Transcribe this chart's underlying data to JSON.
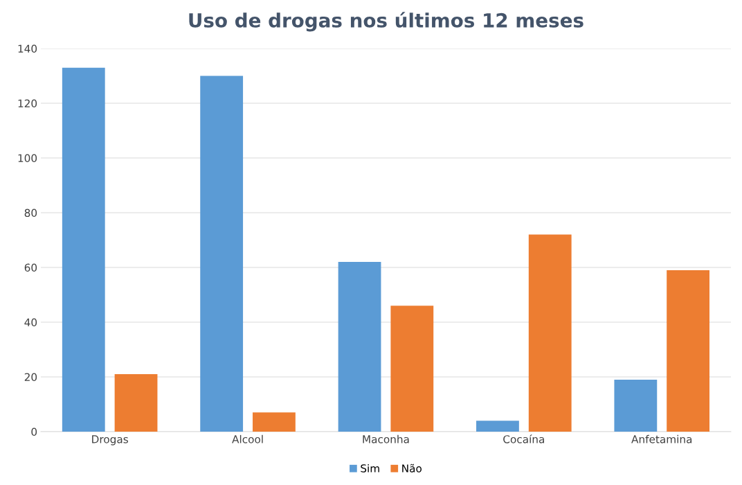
{
  "chart_data": {
    "type": "bar",
    "title": "Uso de drogas nos últimos 12 meses",
    "categories": [
      "Drogas",
      "Alcool",
      "Maconha",
      "Cocaína",
      "Anfetamina"
    ],
    "series": [
      {
        "name": "Sim",
        "color": "#5b9bd5",
        "values": [
          133,
          130,
          62,
          4,
          19
        ]
      },
      {
        "name": "Não",
        "color": "#ed7d31",
        "values": [
          21,
          7,
          46,
          72,
          59
        ]
      }
    ],
    "ylim": [
      0,
      140
    ],
    "yticks": [
      0,
      20,
      40,
      60,
      80,
      100,
      120,
      140
    ],
    "grid": "y",
    "legend": "bottom"
  }
}
